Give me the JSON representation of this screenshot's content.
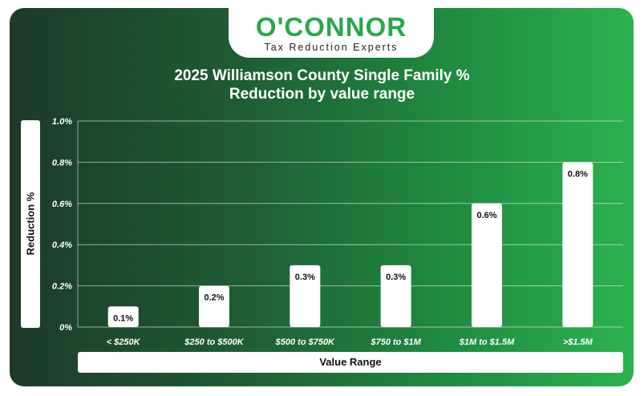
{
  "brand": {
    "name": "O'CONNOR",
    "tagline": "Tax Reduction Experts"
  },
  "chart_data": {
    "type": "bar",
    "title_line1": "2025 Williamson County Single Family %",
    "title_line2": "Reduction by value range",
    "xlabel": "Value Range",
    "ylabel": "Reduction %",
    "categories": [
      "< $250K",
      "$250 to $500K",
      "$500 to $750K",
      "$750 to $1M",
      "$1M to $1.5M",
      ">$1.5M"
    ],
    "values": [
      0.1,
      0.2,
      0.3,
      0.3,
      0.6,
      0.8
    ],
    "value_labels": [
      "0.1%",
      "0.2%",
      "0.3%",
      "0.3%",
      "0.6%",
      "0.8%"
    ],
    "ylim": [
      0,
      1.0
    ],
    "yticks": [
      0,
      0.2,
      0.4,
      0.6,
      0.8,
      1.0
    ],
    "ytick_labels": [
      "0%",
      "0.2%",
      "0.4%",
      "0.6%",
      "0.8%",
      "1.0%"
    ],
    "grid": true
  },
  "colors": {
    "bar": "#ffffff",
    "grid": "#ffffff",
    "text": "#ffffff",
    "brand_green": "#2aa84a"
  }
}
